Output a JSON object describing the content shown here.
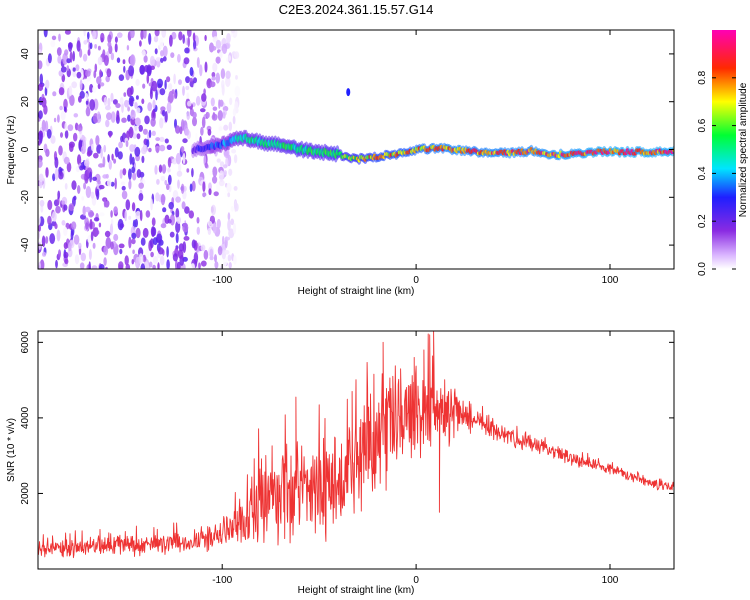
{
  "title": "C2E3.2024.361.15.57.G14",
  "colors": {
    "snr_line": "#ee3333",
    "frame": "#000000",
    "background": "#ffffff"
  },
  "chart_data": [
    {
      "type": "heatmap",
      "xlabel": "Height of straight line (km)",
      "ylabel": "Frequency (Hz)",
      "xlim": [
        -195,
        133
      ],
      "ylim": [
        -50,
        50
      ],
      "xticks": [
        -100,
        0,
        100
      ],
      "yticks": [
        -40,
        -20,
        0,
        20,
        40
      ],
      "colorbar": {
        "label": "Normalized spectral amplitude",
        "range": [
          0,
          1
        ],
        "ticks": [
          "0.0",
          "0.2",
          "0.4",
          "0.6",
          "0.8"
        ],
        "ticks_values": [
          0,
          0.2,
          0.4,
          0.6,
          0.8
        ],
        "colormap": "white-purple-blue-cyan-green-yellow-red-magenta"
      },
      "noise_region_x": [
        -195,
        -92
      ],
      "signal_start_x": -115,
      "ridge": {
        "x": [
          -115,
          -100,
          -90,
          -80,
          -70,
          -60,
          -50,
          -40,
          -30,
          -20,
          -10,
          0,
          10,
          20,
          30,
          40,
          50,
          60,
          70,
          80,
          90,
          100,
          110,
          120,
          133
        ],
        "freq": [
          0,
          2,
          5,
          3,
          2,
          0,
          -1,
          -2,
          -4,
          -3,
          -2,
          0,
          0.5,
          0,
          -1,
          -1,
          -1.5,
          -0.5,
          -2,
          -2,
          -1,
          -1,
          -1,
          -1,
          -1
        ],
        "amplitude": [
          0.25,
          0.4,
          0.5,
          0.55,
          0.55,
          0.6,
          0.55,
          0.65,
          0.75,
          0.8,
          0.82,
          0.85,
          0.88,
          0.9,
          0.88,
          0.9,
          0.9,
          0.9,
          0.92,
          0.92,
          0.95,
          0.95,
          0.95,
          0.95,
          0.95
        ]
      }
    },
    {
      "type": "line",
      "xlabel": "Height of straight line (km)",
      "ylabel": "SNR (10 * v/v)",
      "xlim": [
        -195,
        133
      ],
      "ylim": [
        0,
        6300
      ],
      "xticks": [
        -100,
        0,
        100
      ],
      "yticks": [
        2000,
        4000,
        6000
      ],
      "series": [
        {
          "x": [
            -195,
            -180,
            -160,
            -140,
            -120,
            -110,
            -100,
            -95,
            -90,
            -85,
            -80,
            -75,
            -70,
            -65,
            -60,
            -55,
            -50,
            -45,
            -40,
            -35,
            -30,
            -25,
            -20,
            -15,
            -10,
            -5,
            0,
            5,
            10,
            15,
            20,
            25,
            30,
            35,
            40,
            45,
            50,
            55,
            60,
            70,
            80,
            90,
            100,
            110,
            120,
            133
          ],
          "values": [
            500,
            550,
            600,
            650,
            700,
            800,
            850,
            1100,
            1300,
            1600,
            1800,
            2000,
            1900,
            2100,
            2200,
            2000,
            2200,
            2300,
            2100,
            2500,
            2900,
            3300,
            3500,
            3700,
            3900,
            4000,
            4200,
            4100,
            4200,
            4100,
            4200,
            4000,
            3900,
            3800,
            3700,
            3600,
            3500,
            3400,
            3300,
            3100,
            2950,
            2800,
            2650,
            2450,
            2300,
            2150
          ],
          "spread": [
            250,
            280,
            300,
            320,
            350,
            400,
            450,
            600,
            900,
            1200,
            1400,
            1500,
            1500,
            1500,
            1600,
            1600,
            1700,
            1700,
            1800,
            1700,
            1600,
            1600,
            1600,
            1700,
            1600,
            1400,
            1500,
            1400,
            1300,
            1100,
            700,
            500,
            400,
            350,
            330,
            320,
            300,
            280,
            260,
            240,
            220,
            200,
            190,
            180,
            170,
            150
          ],
          "peaks": [
            [
              -62,
              4550
            ],
            [
              -33,
              4700
            ],
            [
              -17,
              6000
            ],
            [
              -12,
              5100
            ],
            [
              -8,
              5300
            ],
            [
              -1,
              5600
            ],
            [
              4,
              5800
            ],
            [
              7,
              6200
            ],
            [
              9,
              6300
            ],
            [
              12,
              1500
            ]
          ]
        }
      ]
    }
  ]
}
